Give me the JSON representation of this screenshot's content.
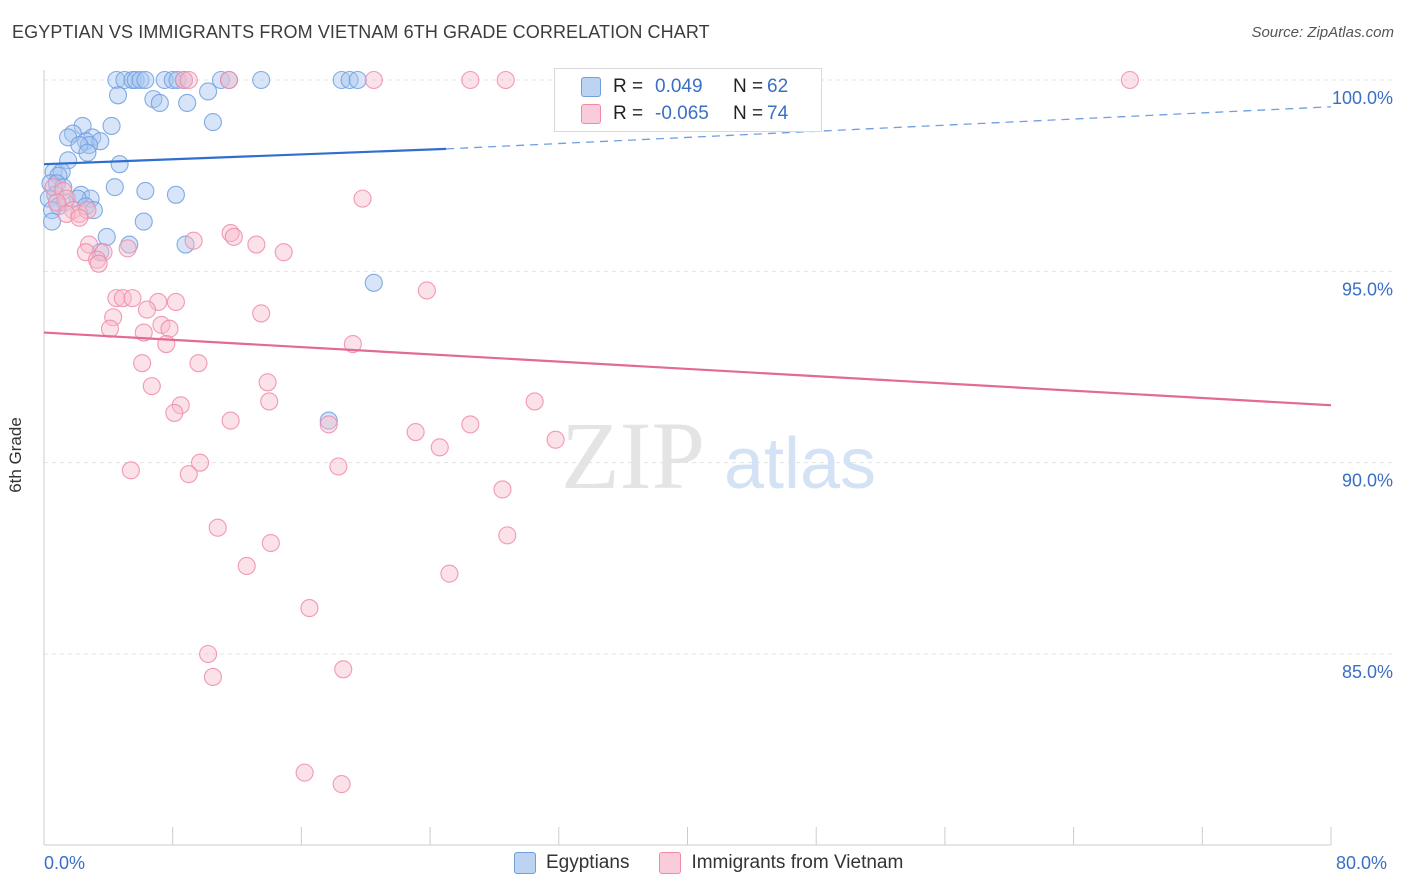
{
  "title": "EGYPTIAN VS IMMIGRANTS FROM VIETNAM 6TH GRADE CORRELATION CHART",
  "source": "Source: ZipAtlas.com",
  "watermark": {
    "zip": "ZIP",
    "atlas": "atlas"
  },
  "legend": {
    "rows": [
      {
        "r_label": "R =",
        "r_value": "0.049",
        "n_label": "N =",
        "n_value": "62",
        "color": "#6f9fe0"
      },
      {
        "r_label": "R =",
        "r_value": "-0.065",
        "n_label": "N =",
        "n_value": "74",
        "color": "#f08aa8"
      }
    ]
  },
  "chart_data": {
    "type": "scatter",
    "title": "EGYPTIAN VS IMMIGRANTS FROM VIETNAM 6TH GRADE CORRELATION CHART",
    "xlabel": "",
    "ylabel": "6th Grade",
    "xlim": [
      0,
      80
    ],
    "ylim": [
      80.5,
      100.5
    ],
    "x_tick_labels": [
      "0.0%",
      "80.0%"
    ],
    "y_ticks": [
      100,
      95,
      90,
      85
    ],
    "y_tick_labels": [
      "100.0%",
      "95.0%",
      "90.0%",
      "85.0%"
    ],
    "grid": true,
    "series": [
      {
        "name": "Egyptians",
        "color": "#6f9fe0",
        "fill": "#a9c6ef",
        "trend": {
          "x0": 0,
          "y0": 97.8,
          "x1": 25,
          "y1": 98.2,
          "dash_x1": 80,
          "dash_y1": 99.3
        },
        "points": [
          [
            4.5,
            100
          ],
          [
            5,
            100
          ],
          [
            5.5,
            100
          ],
          [
            5.7,
            100
          ],
          [
            6,
            100
          ],
          [
            6.3,
            100
          ],
          [
            7.5,
            100
          ],
          [
            8,
            100
          ],
          [
            8.3,
            100
          ],
          [
            8.7,
            100
          ],
          [
            11,
            100
          ],
          [
            11.5,
            100
          ],
          [
            13.5,
            100
          ],
          [
            18.5,
            100
          ],
          [
            19,
            100
          ],
          [
            19.5,
            100
          ],
          [
            4.6,
            99.6
          ],
          [
            6.8,
            99.5
          ],
          [
            7.2,
            99.4
          ],
          [
            8.9,
            99.4
          ],
          [
            10.2,
            99.7
          ],
          [
            2.4,
            98.8
          ],
          [
            4.2,
            98.8
          ],
          [
            1.8,
            98.6
          ],
          [
            1.5,
            98.5
          ],
          [
            3,
            98.5
          ],
          [
            2.6,
            98.4
          ],
          [
            3.5,
            98.4
          ],
          [
            2.8,
            98.3
          ],
          [
            2.2,
            98.3
          ],
          [
            2.7,
            98.1
          ],
          [
            10.5,
            98.9
          ],
          [
            1.5,
            97.9
          ],
          [
            4.7,
            97.8
          ],
          [
            0.6,
            97.6
          ],
          [
            1.1,
            97.6
          ],
          [
            0.9,
            97.5
          ],
          [
            0.4,
            97.3
          ],
          [
            0.8,
            97.3
          ],
          [
            1.2,
            97.2
          ],
          [
            4.4,
            97.2
          ],
          [
            6.3,
            97.1
          ],
          [
            8.2,
            97.0
          ],
          [
            2.3,
            97.0
          ],
          [
            0.7,
            97.0
          ],
          [
            2.9,
            96.9
          ],
          [
            2.1,
            96.9
          ],
          [
            0.3,
            96.9
          ],
          [
            1.3,
            96.8
          ],
          [
            2.6,
            96.7
          ],
          [
            0.9,
            96.7
          ],
          [
            0.5,
            96.6
          ],
          [
            3.1,
            96.6
          ],
          [
            0.5,
            96.3
          ],
          [
            6.2,
            96.3
          ],
          [
            3.9,
            95.9
          ],
          [
            5.3,
            95.7
          ],
          [
            8.8,
            95.7
          ],
          [
            3.5,
            95.5
          ],
          [
            20.5,
            94.7
          ],
          [
            17.7,
            91.1
          ]
        ]
      },
      {
        "name": "Immigrants from Vietnam",
        "color": "#f08aa8",
        "fill": "#f7bccd",
        "trend": {
          "x0": 0,
          "y0": 93.4,
          "x1": 80,
          "y1": 91.5
        },
        "points": [
          [
            8.7,
            100
          ],
          [
            9,
            100
          ],
          [
            11.5,
            100
          ],
          [
            20.5,
            100
          ],
          [
            26.5,
            100
          ],
          [
            28.7,
            100
          ],
          [
            67.5,
            100
          ],
          [
            0.6,
            97.2
          ],
          [
            1.2,
            97.1
          ],
          [
            1.4,
            96.9
          ],
          [
            0.8,
            96.8
          ],
          [
            1.8,
            96.6
          ],
          [
            2.2,
            96.5
          ],
          [
            2.7,
            96.6
          ],
          [
            1.4,
            96.5
          ],
          [
            2.2,
            96.4
          ],
          [
            19.8,
            96.9
          ],
          [
            11.6,
            96.0
          ],
          [
            11.8,
            95.9
          ],
          [
            9.3,
            95.8
          ],
          [
            2.8,
            95.7
          ],
          [
            13.2,
            95.7
          ],
          [
            5.2,
            95.6
          ],
          [
            14.9,
            95.5
          ],
          [
            2.6,
            95.5
          ],
          [
            3.7,
            95.5
          ],
          [
            3.3,
            95.3
          ],
          [
            3.4,
            95.2
          ],
          [
            23.8,
            94.5
          ],
          [
            4.5,
            94.3
          ],
          [
            4.9,
            94.3
          ],
          [
            5.5,
            94.3
          ],
          [
            7.1,
            94.2
          ],
          [
            8.2,
            94.2
          ],
          [
            6.4,
            94.0
          ],
          [
            13.5,
            93.9
          ],
          [
            4.3,
            93.8
          ],
          [
            7.3,
            93.6
          ],
          [
            7.8,
            93.5
          ],
          [
            6.2,
            93.4
          ],
          [
            4.1,
            93.5
          ],
          [
            7.6,
            93.1
          ],
          [
            19.2,
            93.1
          ],
          [
            9.6,
            92.6
          ],
          [
            6.1,
            92.6
          ],
          [
            13.9,
            92.1
          ],
          [
            6.7,
            92.0
          ],
          [
            14.0,
            91.6
          ],
          [
            30.5,
            91.6
          ],
          [
            8.5,
            91.5
          ],
          [
            8.1,
            91.3
          ],
          [
            11.6,
            91.1
          ],
          [
            17.7,
            91.0
          ],
          [
            26.5,
            91.0
          ],
          [
            23.1,
            90.8
          ],
          [
            31.8,
            90.6
          ],
          [
            24.6,
            90.4
          ],
          [
            9.7,
            90.0
          ],
          [
            18.3,
            89.9
          ],
          [
            5.4,
            89.8
          ],
          [
            9.0,
            89.7
          ],
          [
            28.5,
            89.3
          ],
          [
            10.8,
            88.3
          ],
          [
            28.8,
            88.1
          ],
          [
            14.1,
            87.9
          ],
          [
            12.6,
            87.3
          ],
          [
            25.2,
            87.1
          ],
          [
            16.5,
            86.2
          ],
          [
            10.2,
            85.0
          ],
          [
            18.6,
            84.6
          ],
          [
            10.5,
            84.4
          ],
          [
            16.2,
            81.9
          ],
          [
            18.5,
            81.6
          ]
        ]
      }
    ]
  }
}
